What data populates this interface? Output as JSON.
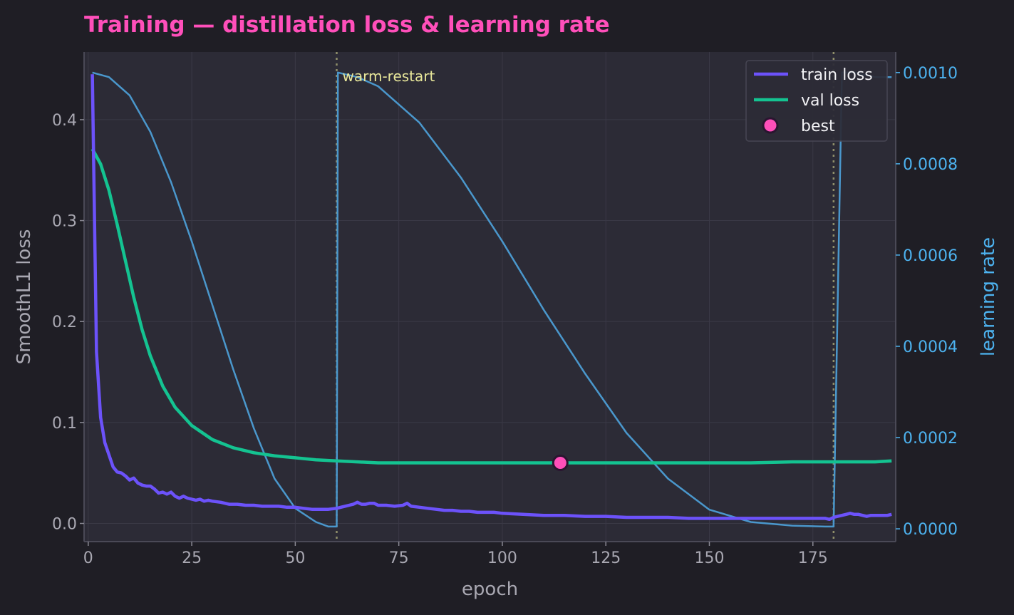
{
  "chart_data": {
    "type": "line",
    "title": "Training — distillation loss & learning rate",
    "xlabel": "epoch",
    "ylabel": "SmoothL1 loss",
    "y2label": "learning rate",
    "xlim": [
      -1,
      195
    ],
    "ylim": [
      -0.018,
      0.467
    ],
    "y2lim": [
      -2.8e-05,
      0.001045
    ],
    "x_ticks": [
      0,
      25,
      50,
      75,
      100,
      125,
      150,
      175
    ],
    "y_ticks": [
      0.0,
      0.1,
      0.2,
      0.3,
      0.4
    ],
    "y_tick_labels": [
      "0.0",
      "0.1",
      "0.2",
      "0.3",
      "0.4"
    ],
    "y2_ticks": [
      0.0,
      0.0002,
      0.0004,
      0.0006,
      0.0008,
      0.001
    ],
    "y2_tick_labels": [
      "0.0000",
      "0.0002",
      "0.0004",
      "0.0006",
      "0.0008",
      "0.0010"
    ],
    "grid": true,
    "legend_position": "top-right",
    "legend": [
      "train loss",
      "val loss",
      "best"
    ],
    "colors": {
      "train": "#6c52fa",
      "val": "#14c391",
      "lr": "#4a97cc",
      "best": "#ff4fba",
      "restart": "#8f8f6a",
      "title": "#ff4fba",
      "lr_axis": "#4db3f0"
    },
    "series": [
      {
        "name": "train loss",
        "x": [
          1,
          2,
          3,
          4,
          5,
          6,
          7,
          8,
          9,
          10,
          11,
          12,
          13,
          14,
          15,
          16,
          17,
          18,
          19,
          20,
          21,
          22,
          23,
          24,
          25,
          26,
          27,
          28,
          29,
          30,
          32,
          34,
          36,
          38,
          40,
          42,
          44,
          46,
          48,
          50,
          52,
          54,
          56,
          58,
          60,
          61,
          62,
          63,
          64,
          65,
          66,
          67,
          68,
          69,
          70,
          72,
          74,
          76,
          77,
          78,
          80,
          82,
          84,
          86,
          88,
          90,
          92,
          94,
          96,
          98,
          100,
          105,
          110,
          115,
          120,
          125,
          130,
          135,
          140,
          145,
          150,
          155,
          160,
          165,
          170,
          175,
          178,
          179,
          180,
          181,
          182,
          183,
          184,
          185,
          186,
          187,
          188,
          189,
          190,
          191,
          192,
          193,
          194
        ],
        "y": [
          0.445,
          0.17,
          0.105,
          0.08,
          0.068,
          0.056,
          0.051,
          0.05,
          0.047,
          0.043,
          0.045,
          0.04,
          0.038,
          0.037,
          0.037,
          0.034,
          0.03,
          0.031,
          0.029,
          0.031,
          0.027,
          0.025,
          0.027,
          0.025,
          0.024,
          0.023,
          0.024,
          0.022,
          0.023,
          0.022,
          0.021,
          0.019,
          0.019,
          0.018,
          0.018,
          0.017,
          0.017,
          0.017,
          0.016,
          0.016,
          0.015,
          0.014,
          0.014,
          0.014,
          0.015,
          0.016,
          0.017,
          0.018,
          0.019,
          0.021,
          0.019,
          0.019,
          0.02,
          0.02,
          0.018,
          0.018,
          0.017,
          0.018,
          0.02,
          0.017,
          0.016,
          0.015,
          0.014,
          0.013,
          0.013,
          0.012,
          0.012,
          0.011,
          0.011,
          0.011,
          0.01,
          0.009,
          0.008,
          0.008,
          0.007,
          0.007,
          0.006,
          0.006,
          0.006,
          0.005,
          0.005,
          0.005,
          0.005,
          0.005,
          0.005,
          0.005,
          0.005,
          0.004,
          0.006,
          0.007,
          0.008,
          0.009,
          0.01,
          0.009,
          0.009,
          0.008,
          0.007,
          0.008,
          0.008,
          0.008,
          0.008,
          0.008,
          0.009
        ]
      },
      {
        "name": "val loss",
        "x": [
          1,
          3,
          5,
          7,
          9,
          11,
          13,
          15,
          18,
          21,
          25,
          30,
          35,
          40,
          45,
          50,
          55,
          60,
          65,
          70,
          80,
          90,
          100,
          110,
          120,
          130,
          140,
          150,
          160,
          170,
          180,
          190,
          194
        ],
        "y": [
          0.371,
          0.356,
          0.33,
          0.296,
          0.26,
          0.224,
          0.192,
          0.166,
          0.136,
          0.115,
          0.097,
          0.083,
          0.075,
          0.07,
          0.067,
          0.065,
          0.063,
          0.062,
          0.061,
          0.06,
          0.06,
          0.06,
          0.06,
          0.06,
          0.06,
          0.06,
          0.06,
          0.06,
          0.06,
          0.061,
          0.061,
          0.061,
          0.062
        ]
      },
      {
        "name": "learning rate",
        "axis": "right",
        "x": [
          1,
          5,
          10,
          15,
          20,
          25,
          30,
          35,
          40,
          45,
          50,
          55,
          58,
          58.6,
          60,
          60.3,
          65,
          70,
          80,
          90,
          100,
          110,
          120,
          130,
          140,
          150,
          160,
          170,
          178,
          179.4,
          180,
          182,
          185,
          190,
          194
        ],
        "y": [
          0.001,
          0.00099,
          0.00095,
          0.00087,
          0.00076,
          0.00063,
          0.00049,
          0.00035,
          0.00022,
          0.00011,
          4.5e-05,
          1.5e-05,
          5e-06,
          5e-06,
          5e-06,
          0.001,
          0.00099,
          0.00097,
          0.00089,
          0.00077,
          0.00063,
          0.00048,
          0.00034,
          0.00021,
          0.00011,
          4.2e-05,
          1.5e-05,
          7e-06,
          5e-06,
          5e-06,
          5e-06,
          0.001,
          0.001,
          0.00099,
          0.00099
        ]
      }
    ],
    "best": {
      "label": "best",
      "x": 114,
      "y": 0.06
    },
    "restarts": [
      60,
      180
    ],
    "annotations": [
      {
        "text": "warm-restart",
        "x": 60,
        "y": 0.001
      }
    ]
  }
}
